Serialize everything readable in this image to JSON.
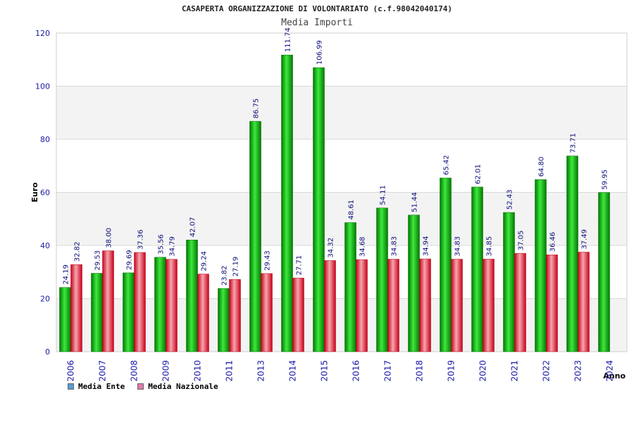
{
  "chart_data": {
    "type": "bar",
    "title": "CASAPERTA ORGANIZZAZIONE DI VOLONTARIATO (c.f.98042040174)",
    "subtitle": "Media Importi",
    "xlabel": "Anno",
    "ylabel": "Euro",
    "ylim": [
      0,
      120
    ],
    "yticks": [
      0,
      20,
      40,
      60,
      80,
      100,
      120
    ],
    "grid": true,
    "legend_position": "bottom-left",
    "categories": [
      "2006",
      "2007",
      "2008",
      "2009",
      "2010",
      "2011",
      "2013",
      "2014",
      "2015",
      "2016",
      "2017",
      "2018",
      "2019",
      "2020",
      "2021",
      "2022",
      "2023",
      "2024"
    ],
    "series": [
      {
        "name": "Media Ente",
        "legend_color": "#5b9bd5",
        "bar_color": "#14b814",
        "values": [
          24.19,
          29.53,
          29.69,
          35.56,
          42.07,
          23.82,
          86.75,
          111.74,
          106.99,
          48.61,
          54.11,
          51.44,
          65.42,
          62.01,
          52.43,
          64.8,
          73.71,
          59.95
        ],
        "labels": [
          "24.19",
          "29.53",
          "29.69",
          "35.56",
          "42.07",
          "23.82",
          "86.75",
          "111.74",
          "106.99",
          "48.61",
          "54.11",
          "51.44",
          "65.42",
          "62.01",
          "52.43",
          "64.80",
          "73.71",
          "59.95"
        ]
      },
      {
        "name": "Media Nazionale",
        "legend_color": "#e07aa8",
        "bar_color": "#e8202e",
        "values": [
          32.82,
          38.0,
          37.36,
          34.79,
          29.24,
          27.19,
          29.43,
          27.71,
          34.32,
          34.68,
          34.83,
          34.94,
          34.83,
          34.85,
          37.05,
          36.46,
          37.49,
          null
        ],
        "labels": [
          "32.82",
          "38.00",
          "37.36",
          "34.79",
          "29.24",
          "27.19",
          "29.43",
          "27.71",
          "34.32",
          "34.68",
          "34.83",
          "34.94",
          "34.83",
          "34.85",
          "37.05",
          "36.46",
          "37.49",
          ""
        ]
      }
    ]
  }
}
